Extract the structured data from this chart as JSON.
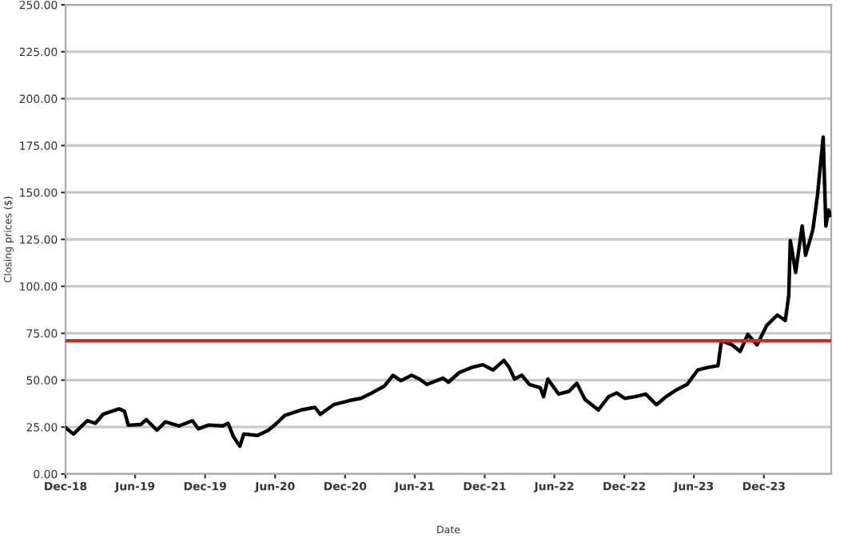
{
  "chart_data": {
    "type": "line",
    "xlabel": "Date",
    "ylabel": "Closing prices ($)",
    "x": [
      "2018-12-01",
      "2018-12-22",
      "2019-01-27",
      "2019-02-17",
      "2019-03-09",
      "2019-04-20",
      "2019-05-04",
      "2019-05-14",
      "2019-06-16",
      "2019-06-30",
      "2019-07-28",
      "2019-08-19",
      "2019-09-24",
      "2019-10-29",
      "2019-11-13",
      "2019-12-11",
      "2020-01-16",
      "2020-01-30",
      "2020-02-13",
      "2020-03-01",
      "2020-03-11",
      "2020-04-16",
      "2020-05-14",
      "2020-06-05",
      "2020-06-26",
      "2020-08-08",
      "2020-09-13",
      "2020-09-27",
      "2020-11-01",
      "2020-12-14",
      "2021-01-11",
      "2021-02-09",
      "2021-03-14",
      "2021-04-05",
      "2021-04-26",
      "2021-05-24",
      "2021-06-13",
      "2021-07-03",
      "2021-08-14",
      "2021-08-28",
      "2021-09-25",
      "2021-10-29",
      "2021-11-26",
      "2021-12-23",
      "2022-01-20",
      "2022-02-03",
      "2022-02-17",
      "2022-03-08",
      "2022-03-28",
      "2022-04-25",
      "2022-05-04",
      "2022-05-15",
      "2022-06-12",
      "2022-07-09",
      "2022-07-30",
      "2022-08-20",
      "2022-09-24",
      "2022-10-21",
      "2022-11-11",
      "2022-12-02",
      "2022-12-29",
      "2023-01-26",
      "2023-02-23",
      "2023-03-20",
      "2023-04-17",
      "2023-05-14",
      "2023-06-11",
      "2023-07-09",
      "2023-08-03",
      "2023-08-12",
      "2023-09-09",
      "2023-09-30",
      "2023-10-20",
      "2023-11-13",
      "2023-12-08",
      "2024-01-05",
      "2024-01-26",
      "2024-02-04",
      "2024-02-08",
      "2024-02-22",
      "2024-03-10",
      "2024-03-19",
      "2024-04-07",
      "2024-04-19",
      "2024-05-04",
      "2024-05-11",
      "2024-05-18",
      "2024-05-23"
    ],
    "series": [
      {
        "color": "#000000",
        "values": [
          24.7,
          21.3,
          28.4,
          27,
          31.8,
          34.7,
          33.5,
          26,
          26.4,
          29,
          23.3,
          27.8,
          25.6,
          28.4,
          24.1,
          26.1,
          25.6,
          27,
          19.9,
          14.8,
          21.3,
          20.5,
          23.3,
          27,
          31.2,
          34.1,
          35.5,
          31.8,
          36.9,
          39.2,
          40.3,
          43.2,
          46.9,
          52.6,
          49.7,
          52.6,
          50.6,
          47.7,
          51.1,
          48.9,
          54,
          56.8,
          58.2,
          55.4,
          60.5,
          56.8,
          50.6,
          52.6,
          47.7,
          46,
          41.2,
          50.6,
          42.6,
          44,
          48.3,
          39.8,
          34.1,
          41.2,
          43.2,
          40.3,
          41.2,
          42.6,
          36.9,
          41.2,
          44.9,
          47.7,
          55.4,
          56.8,
          57.7,
          71,
          68.8,
          65.3,
          74.4,
          68.8,
          79,
          84.7,
          81.8,
          95.2,
          124.4,
          107.4,
          132.1,
          116.5,
          130.1,
          148.3,
          179.5,
          132.1,
          140.6,
          137.8
        ]
      }
    ],
    "xlim": [
      "2018-12-01",
      "2024-05-25"
    ],
    "xticks": [
      {
        "value": "2018-12-01",
        "label": "Dec-18"
      },
      {
        "value": "2019-06-01",
        "label": "Jun-19"
      },
      {
        "value": "2019-12-01",
        "label": "Dec-19"
      },
      {
        "value": "2020-06-01",
        "label": "Jun-20"
      },
      {
        "value": "2020-12-01",
        "label": "Dec-20"
      },
      {
        "value": "2021-06-01",
        "label": "Jun-21"
      },
      {
        "value": "2021-12-01",
        "label": "Dec-21"
      },
      {
        "value": "2022-06-01",
        "label": "Jun-22"
      },
      {
        "value": "2022-12-01",
        "label": "Dec-22"
      },
      {
        "value": "2023-06-01",
        "label": "Jun-23"
      },
      {
        "value": "2023-12-01",
        "label": "Dec-23"
      }
    ],
    "ylim": [
      0,
      250
    ],
    "yticks": [
      {
        "value": 0,
        "label": "0.00"
      },
      {
        "value": 25,
        "label": "25.00"
      },
      {
        "value": 50,
        "label": "50.00"
      },
      {
        "value": 75,
        "label": "75.00"
      },
      {
        "value": 100,
        "label": "100.00"
      },
      {
        "value": 125,
        "label": "125.00"
      },
      {
        "value": 150,
        "label": "150.00"
      },
      {
        "value": 175,
        "label": "175.00"
      },
      {
        "value": 200,
        "label": "200.00"
      },
      {
        "value": 225,
        "label": "225.00"
      },
      {
        "value": 250,
        "label": "250.00"
      }
    ],
    "ref_lines": [
      {
        "axis": "y",
        "value": 71,
        "color": "#e02020"
      }
    ],
    "grid": "y",
    "marker": "none",
    "line_style": "solid"
  }
}
